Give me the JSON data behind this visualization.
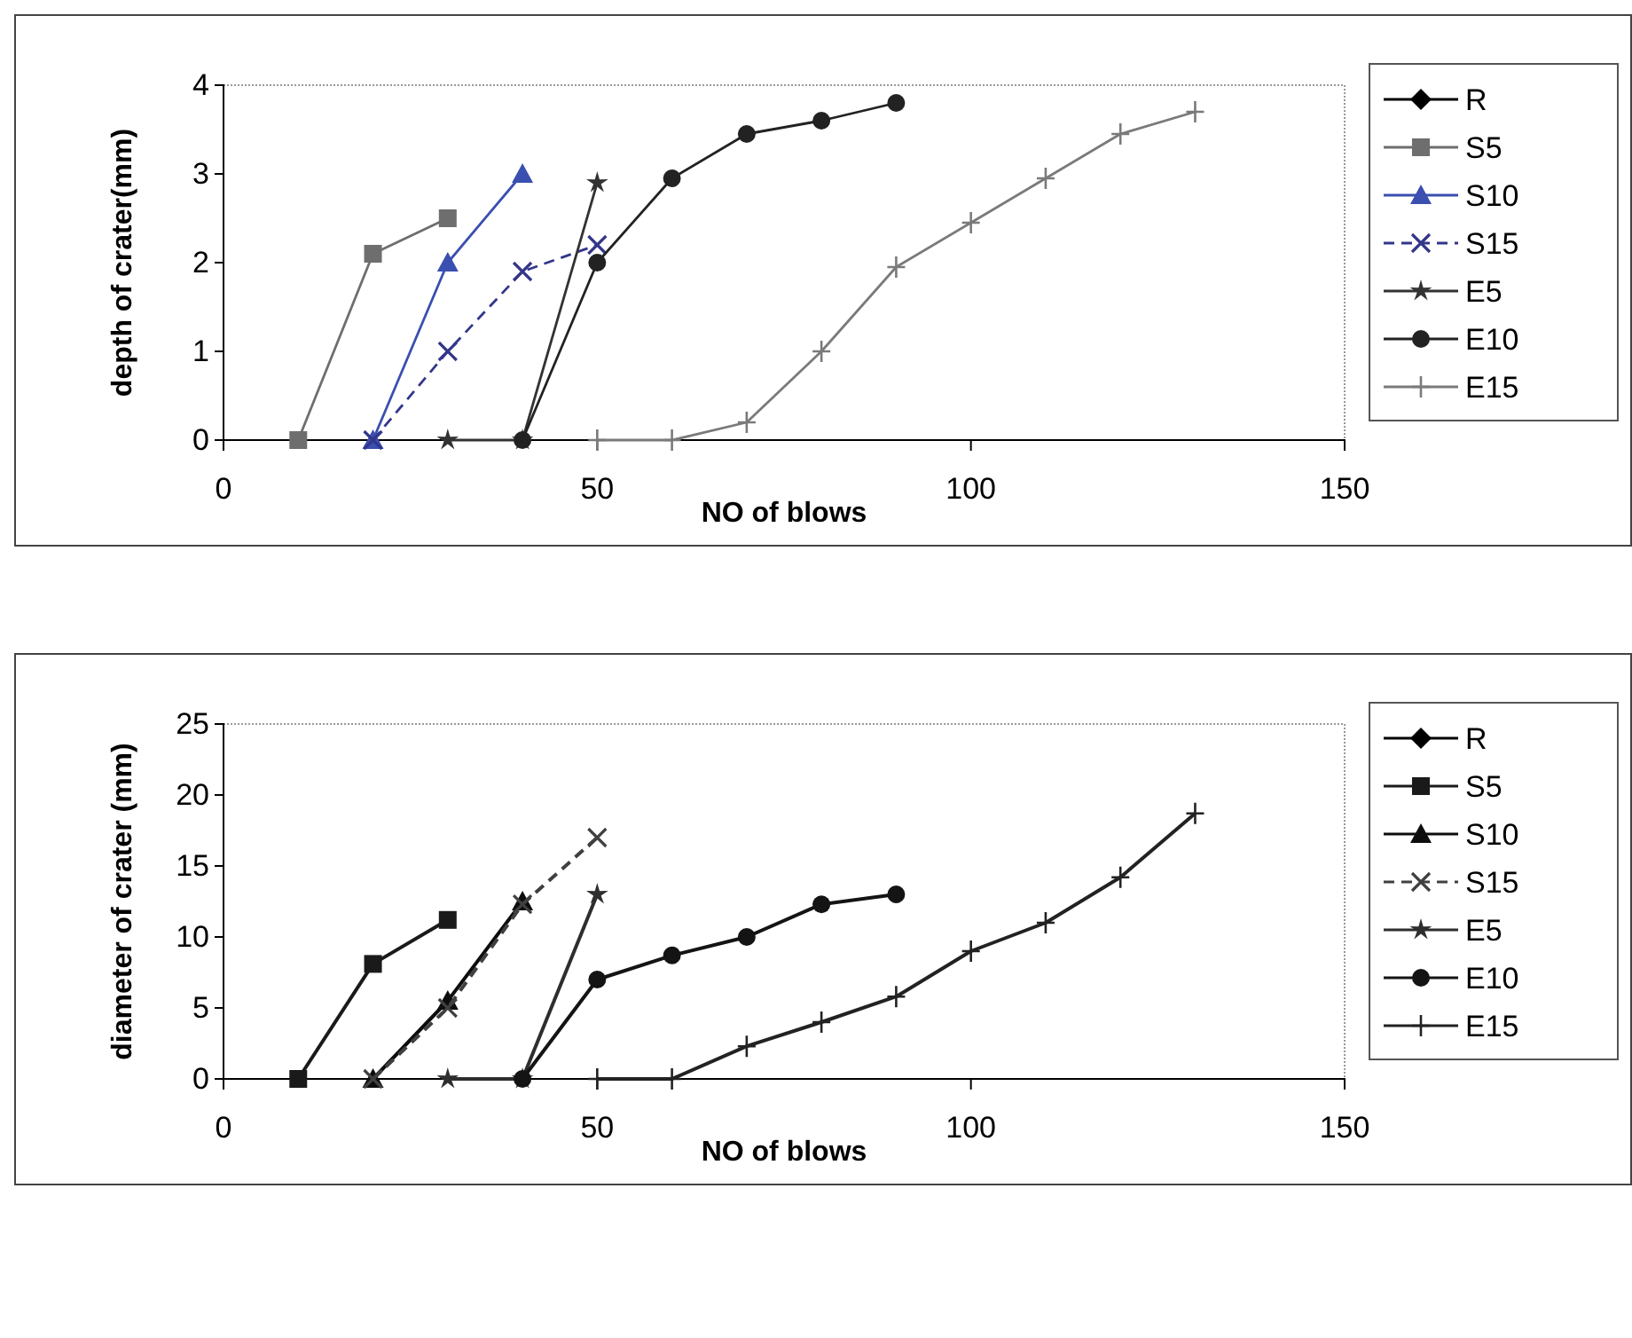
{
  "chart_data": [
    {
      "type": "line",
      "xlabel": "NO of blows",
      "ylabel": "depth of crater(mm)",
      "xlim": [
        0,
        150
      ],
      "xticks": [
        0,
        50,
        100,
        150
      ],
      "ylim": [
        0,
        4
      ],
      "yticks": [
        0,
        1,
        2,
        3,
        4
      ],
      "legend": "right",
      "grid": false,
      "series": [
        {
          "name": "R",
          "color": "#000000",
          "marker": "diamond"
        },
        {
          "name": "S5",
          "color": "#6e6e6e",
          "marker": "square",
          "x": [
            10,
            20,
            30
          ],
          "values": [
            0,
            2.1,
            2.5
          ]
        },
        {
          "name": "S10",
          "color": "#3a4fb0",
          "marker": "triangle",
          "x": [
            20,
            30,
            40
          ],
          "values": [
            0,
            2.0,
            3.0
          ]
        },
        {
          "name": "S15",
          "color": "#33368a",
          "marker": "cross",
          "line_style": "dashed",
          "x": [
            20,
            30,
            40,
            50
          ],
          "values": [
            0,
            1.0,
            1.9,
            2.2
          ]
        },
        {
          "name": "E5",
          "color": "#333333",
          "marker": "star",
          "x": [
            30,
            40,
            50
          ],
          "values": [
            0,
            0,
            2.9
          ]
        },
        {
          "name": "E10",
          "color": "#222222",
          "marker": "circle",
          "x": [
            40,
            50,
            60,
            70,
            80,
            90
          ],
          "values": [
            0,
            2.0,
            2.95,
            3.45,
            3.6,
            3.8
          ]
        },
        {
          "name": "E15",
          "color": "#7a7a7a",
          "marker": "plus",
          "x": [
            50,
            60,
            70,
            80,
            90,
            100,
            110,
            120,
            130
          ],
          "values": [
            0,
            0,
            0.2,
            1.0,
            1.95,
            2.45,
            2.95,
            3.45,
            3.7
          ]
        }
      ]
    },
    {
      "type": "line",
      "xlabel": "NO of blows",
      "ylabel": "diameter of crater (mm)",
      "xlim": [
        0,
        150
      ],
      "xticks": [
        0,
        50,
        100,
        150
      ],
      "ylim": [
        0,
        25
      ],
      "yticks": [
        0,
        5,
        10,
        15,
        20,
        25
      ],
      "legend": "right",
      "grid": false,
      "series": [
        {
          "name": "R",
          "color": "#000000",
          "marker": "diamond"
        },
        {
          "name": "S5",
          "color": "#1a1a1a",
          "marker": "square",
          "x": [
            10,
            20,
            30
          ],
          "values": [
            0,
            8.1,
            11.2
          ]
        },
        {
          "name": "S10",
          "color": "#0d0d0d",
          "marker": "triangle",
          "x": [
            20,
            30,
            40
          ],
          "values": [
            0,
            5.5,
            12.5
          ]
        },
        {
          "name": "S15",
          "color": "#404040",
          "marker": "cross",
          "line_style": "dashed",
          "x": [
            20,
            30,
            40,
            50
          ],
          "values": [
            0,
            5,
            12.3,
            17
          ]
        },
        {
          "name": "E5",
          "color": "#2e2e2e",
          "marker": "star",
          "x": [
            30,
            40,
            50
          ],
          "values": [
            0,
            0,
            13
          ]
        },
        {
          "name": "E10",
          "color": "#141414",
          "marker": "circle",
          "x": [
            40,
            50,
            60,
            70,
            80,
            90
          ],
          "values": [
            0,
            7,
            8.7,
            10,
            12.3,
            13
          ]
        },
        {
          "name": "E15",
          "color": "#222222",
          "marker": "plus",
          "x": [
            50,
            60,
            70,
            80,
            90,
            100,
            110,
            120,
            130
          ],
          "values": [
            0,
            0,
            2.3,
            4.0,
            5.8,
            9.0,
            11,
            14.2,
            18.7
          ]
        }
      ]
    }
  ]
}
